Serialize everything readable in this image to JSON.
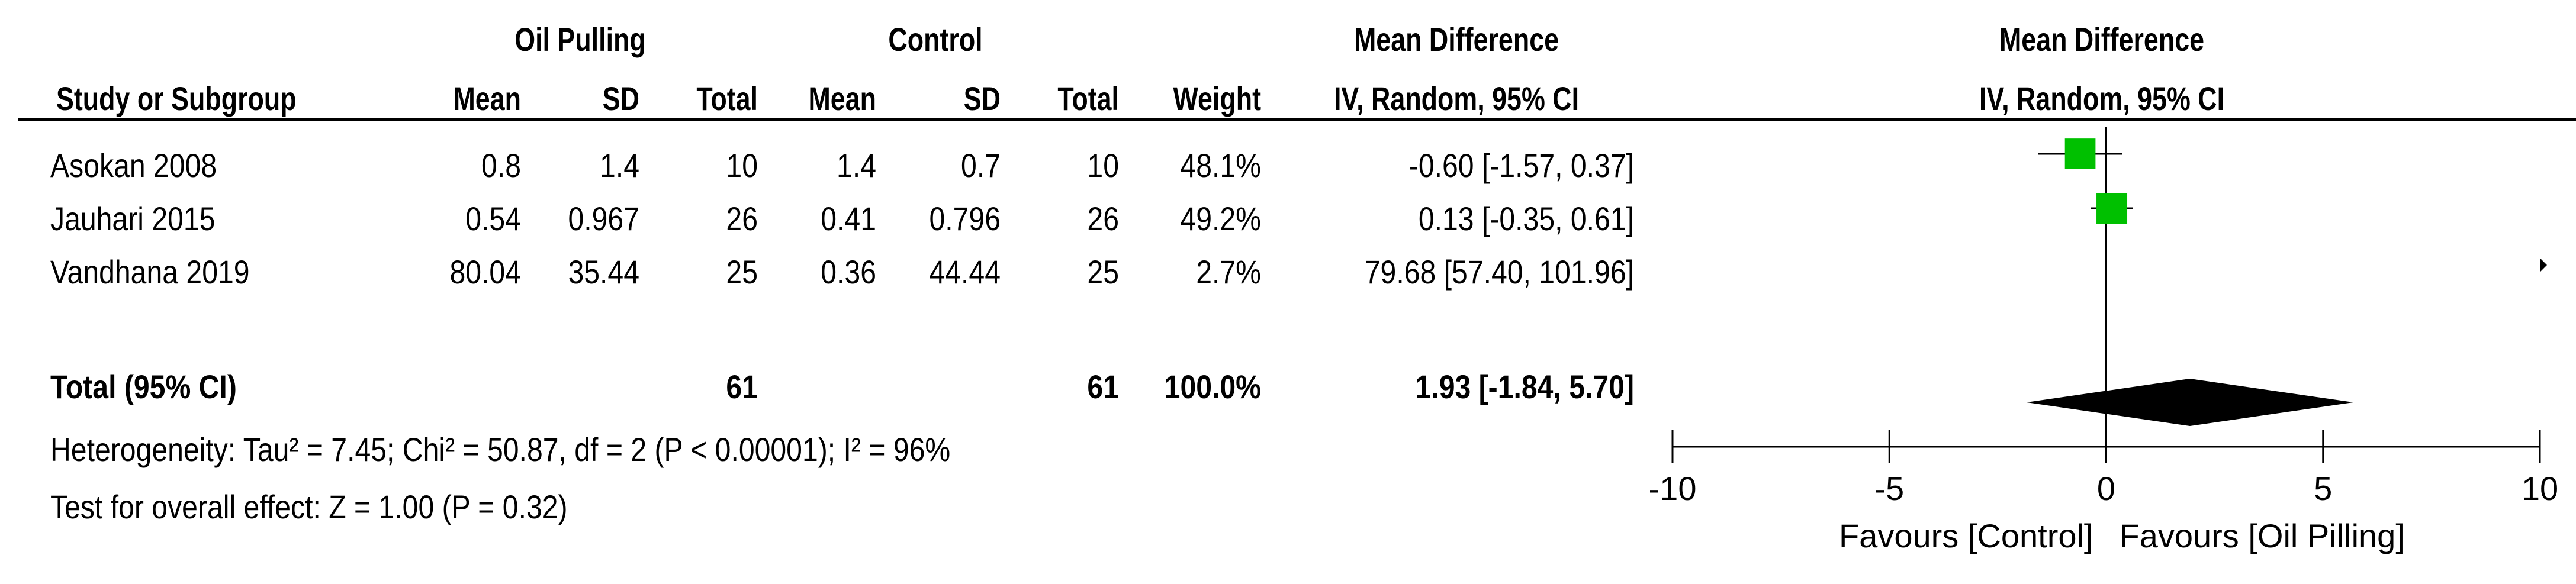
{
  "chart_data": {
    "type": "forest",
    "group_headers": {
      "experimental": "Oil Pulling",
      "control": "Control",
      "md_table": "Mean Difference",
      "md_plot": "Mean Difference"
    },
    "columns": {
      "study": "Study or Subgroup",
      "mean_e": "Mean",
      "sd_e": "SD",
      "total_e": "Total",
      "mean_c": "Mean",
      "sd_c": "SD",
      "total_c": "Total",
      "weight": "Weight",
      "ci": "IV, Random, 95% CI",
      "plot_ci": "IV, Random, 95% CI"
    },
    "studies": [
      {
        "name": "Asokan 2008",
        "mean_e": "0.8",
        "sd_e": "1.4",
        "total_e": "10",
        "mean_c": "1.4",
        "sd_c": "0.7",
        "total_c": "10",
        "weight": "48.1%",
        "ci_text": "-0.60 [-1.57, 0.37]",
        "md": -0.6,
        "lo": -1.57,
        "hi": 0.37,
        "weight_value": 48.1
      },
      {
        "name": "Jauhari 2015",
        "mean_e": "0.54",
        "sd_e": "0.967",
        "total_e": "26",
        "mean_c": "0.41",
        "sd_c": "0.796",
        "total_c": "26",
        "weight": "49.2%",
        "ci_text": "0.13 [-0.35, 0.61]",
        "md": 0.13,
        "lo": -0.35,
        "hi": 0.61,
        "weight_value": 49.2
      },
      {
        "name": "Vandhana 2019",
        "mean_e": "80.04",
        "sd_e": "35.44",
        "total_e": "25",
        "mean_c": "0.36",
        "sd_c": "44.44",
        "total_c": "25",
        "weight": "2.7%",
        "ci_text": "79.68 [57.40, 101.96]",
        "md": 79.68,
        "lo": 57.4,
        "hi": 101.96,
        "weight_value": 2.7
      }
    ],
    "total": {
      "label": "Total (95% CI)",
      "total_e": "61",
      "total_c": "61",
      "weight": "100.0%",
      "ci_text": "1.93 [-1.84, 5.70]",
      "md": 1.93,
      "lo": -1.84,
      "hi": 5.7
    },
    "heterogeneity": "Heterogeneity: Tau² = 7.45; Chi² = 50.87, df = 2 (P < 0.00001); I² = 96%",
    "overall_effect": "Test for overall effect: Z = 1.00 (P = 0.32)",
    "axis": {
      "xlim": [
        -10,
        10
      ],
      "ticks": [
        -10,
        -5,
        0,
        5,
        10
      ],
      "tick_labels": [
        "-10",
        "-5",
        "0",
        "5",
        "10"
      ]
    },
    "favours_left": "Favours [Control]",
    "favours_right": "Favours [Oil Pilling]",
    "colors": {
      "square": "#00c000",
      "diamond": "#000000",
      "line": "#000000"
    }
  }
}
